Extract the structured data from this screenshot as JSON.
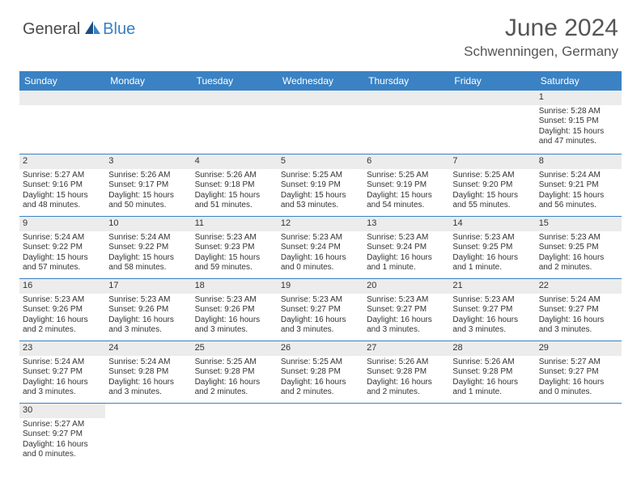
{
  "logo": {
    "text1": "General",
    "text2": "Blue"
  },
  "title": "June 2024",
  "location": "Schwenningen, Germany",
  "day_names": [
    "Sunday",
    "Monday",
    "Tuesday",
    "Wednesday",
    "Thursday",
    "Friday",
    "Saturday"
  ],
  "colors": {
    "header_bg": "#3a82c4",
    "header_text": "#ffffff",
    "num_bg": "#ececec",
    "border": "#3a82c4",
    "body_text": "#333333"
  },
  "weeks": [
    [
      null,
      null,
      null,
      null,
      null,
      null,
      {
        "n": "1",
        "sr": "Sunrise: 5:28 AM",
        "ss": "Sunset: 9:15 PM",
        "d1": "Daylight: 15 hours",
        "d2": "and 47 minutes."
      }
    ],
    [
      {
        "n": "2",
        "sr": "Sunrise: 5:27 AM",
        "ss": "Sunset: 9:16 PM",
        "d1": "Daylight: 15 hours",
        "d2": "and 48 minutes."
      },
      {
        "n": "3",
        "sr": "Sunrise: 5:26 AM",
        "ss": "Sunset: 9:17 PM",
        "d1": "Daylight: 15 hours",
        "d2": "and 50 minutes."
      },
      {
        "n": "4",
        "sr": "Sunrise: 5:26 AM",
        "ss": "Sunset: 9:18 PM",
        "d1": "Daylight: 15 hours",
        "d2": "and 51 minutes."
      },
      {
        "n": "5",
        "sr": "Sunrise: 5:25 AM",
        "ss": "Sunset: 9:19 PM",
        "d1": "Daylight: 15 hours",
        "d2": "and 53 minutes."
      },
      {
        "n": "6",
        "sr": "Sunrise: 5:25 AM",
        "ss": "Sunset: 9:19 PM",
        "d1": "Daylight: 15 hours",
        "d2": "and 54 minutes."
      },
      {
        "n": "7",
        "sr": "Sunrise: 5:25 AM",
        "ss": "Sunset: 9:20 PM",
        "d1": "Daylight: 15 hours",
        "d2": "and 55 minutes."
      },
      {
        "n": "8",
        "sr": "Sunrise: 5:24 AM",
        "ss": "Sunset: 9:21 PM",
        "d1": "Daylight: 15 hours",
        "d2": "and 56 minutes."
      }
    ],
    [
      {
        "n": "9",
        "sr": "Sunrise: 5:24 AM",
        "ss": "Sunset: 9:22 PM",
        "d1": "Daylight: 15 hours",
        "d2": "and 57 minutes."
      },
      {
        "n": "10",
        "sr": "Sunrise: 5:24 AM",
        "ss": "Sunset: 9:22 PM",
        "d1": "Daylight: 15 hours",
        "d2": "and 58 minutes."
      },
      {
        "n": "11",
        "sr": "Sunrise: 5:23 AM",
        "ss": "Sunset: 9:23 PM",
        "d1": "Daylight: 15 hours",
        "d2": "and 59 minutes."
      },
      {
        "n": "12",
        "sr": "Sunrise: 5:23 AM",
        "ss": "Sunset: 9:24 PM",
        "d1": "Daylight: 16 hours",
        "d2": "and 0 minutes."
      },
      {
        "n": "13",
        "sr": "Sunrise: 5:23 AM",
        "ss": "Sunset: 9:24 PM",
        "d1": "Daylight: 16 hours",
        "d2": "and 1 minute."
      },
      {
        "n": "14",
        "sr": "Sunrise: 5:23 AM",
        "ss": "Sunset: 9:25 PM",
        "d1": "Daylight: 16 hours",
        "d2": "and 1 minute."
      },
      {
        "n": "15",
        "sr": "Sunrise: 5:23 AM",
        "ss": "Sunset: 9:25 PM",
        "d1": "Daylight: 16 hours",
        "d2": "and 2 minutes."
      }
    ],
    [
      {
        "n": "16",
        "sr": "Sunrise: 5:23 AM",
        "ss": "Sunset: 9:26 PM",
        "d1": "Daylight: 16 hours",
        "d2": "and 2 minutes."
      },
      {
        "n": "17",
        "sr": "Sunrise: 5:23 AM",
        "ss": "Sunset: 9:26 PM",
        "d1": "Daylight: 16 hours",
        "d2": "and 3 minutes."
      },
      {
        "n": "18",
        "sr": "Sunrise: 5:23 AM",
        "ss": "Sunset: 9:26 PM",
        "d1": "Daylight: 16 hours",
        "d2": "and 3 minutes."
      },
      {
        "n": "19",
        "sr": "Sunrise: 5:23 AM",
        "ss": "Sunset: 9:27 PM",
        "d1": "Daylight: 16 hours",
        "d2": "and 3 minutes."
      },
      {
        "n": "20",
        "sr": "Sunrise: 5:23 AM",
        "ss": "Sunset: 9:27 PM",
        "d1": "Daylight: 16 hours",
        "d2": "and 3 minutes."
      },
      {
        "n": "21",
        "sr": "Sunrise: 5:23 AM",
        "ss": "Sunset: 9:27 PM",
        "d1": "Daylight: 16 hours",
        "d2": "and 3 minutes."
      },
      {
        "n": "22",
        "sr": "Sunrise: 5:24 AM",
        "ss": "Sunset: 9:27 PM",
        "d1": "Daylight: 16 hours",
        "d2": "and 3 minutes."
      }
    ],
    [
      {
        "n": "23",
        "sr": "Sunrise: 5:24 AM",
        "ss": "Sunset: 9:27 PM",
        "d1": "Daylight: 16 hours",
        "d2": "and 3 minutes."
      },
      {
        "n": "24",
        "sr": "Sunrise: 5:24 AM",
        "ss": "Sunset: 9:28 PM",
        "d1": "Daylight: 16 hours",
        "d2": "and 3 minutes."
      },
      {
        "n": "25",
        "sr": "Sunrise: 5:25 AM",
        "ss": "Sunset: 9:28 PM",
        "d1": "Daylight: 16 hours",
        "d2": "and 2 minutes."
      },
      {
        "n": "26",
        "sr": "Sunrise: 5:25 AM",
        "ss": "Sunset: 9:28 PM",
        "d1": "Daylight: 16 hours",
        "d2": "and 2 minutes."
      },
      {
        "n": "27",
        "sr": "Sunrise: 5:26 AM",
        "ss": "Sunset: 9:28 PM",
        "d1": "Daylight: 16 hours",
        "d2": "and 2 minutes."
      },
      {
        "n": "28",
        "sr": "Sunrise: 5:26 AM",
        "ss": "Sunset: 9:28 PM",
        "d1": "Daylight: 16 hours",
        "d2": "and 1 minute."
      },
      {
        "n": "29",
        "sr": "Sunrise: 5:27 AM",
        "ss": "Sunset: 9:27 PM",
        "d1": "Daylight: 16 hours",
        "d2": "and 0 minutes."
      }
    ],
    [
      {
        "n": "30",
        "sr": "Sunrise: 5:27 AM",
        "ss": "Sunset: 9:27 PM",
        "d1": "Daylight: 16 hours",
        "d2": "and 0 minutes."
      },
      null,
      null,
      null,
      null,
      null,
      null
    ]
  ]
}
